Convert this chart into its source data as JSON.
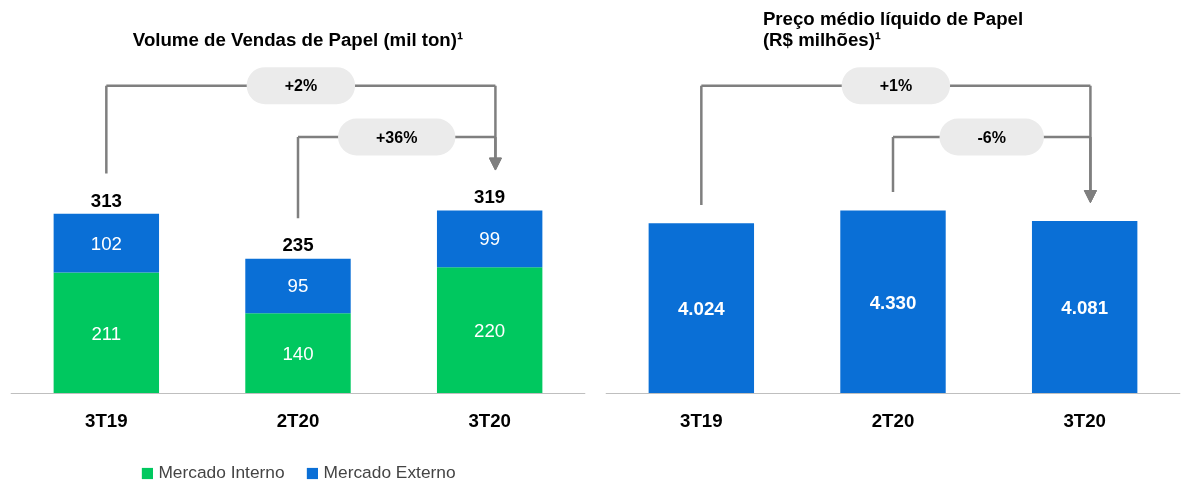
{
  "chart_data": [
    {
      "type": "bar",
      "title": "Volume de Vendas de Papel (mil ton)¹",
      "categories": [
        "3T19",
        "2T20",
        "3T20"
      ],
      "stacked": true,
      "series": [
        {
          "name": "Mercado Interno",
          "color": "#00c85f",
          "values": [
            211,
            140,
            220
          ]
        },
        {
          "name": "Mercado Externo",
          "color": "#0a6fd6",
          "values": [
            102,
            95,
            99
          ]
        }
      ],
      "data_labels": true,
      "totals": [
        "313",
        "235",
        "319"
      ],
      "legend": "bottom",
      "annotations": [
        "+2%",
        "+36%"
      ]
    },
    {
      "type": "bar",
      "title": "Preço médio líquido de Papel\n(R$ milhões)¹",
      "categories": [
        "3T19",
        "2T20",
        "3T20"
      ],
      "series": [
        {
          "color": "#0a6fd6",
          "values": [
            4024,
            4330,
            4081
          ],
          "value_labels": [
            "4.024",
            "4.330",
            "4.081"
          ]
        }
      ],
      "annotations": [
        "+1%",
        "-6%"
      ]
    }
  ]
}
